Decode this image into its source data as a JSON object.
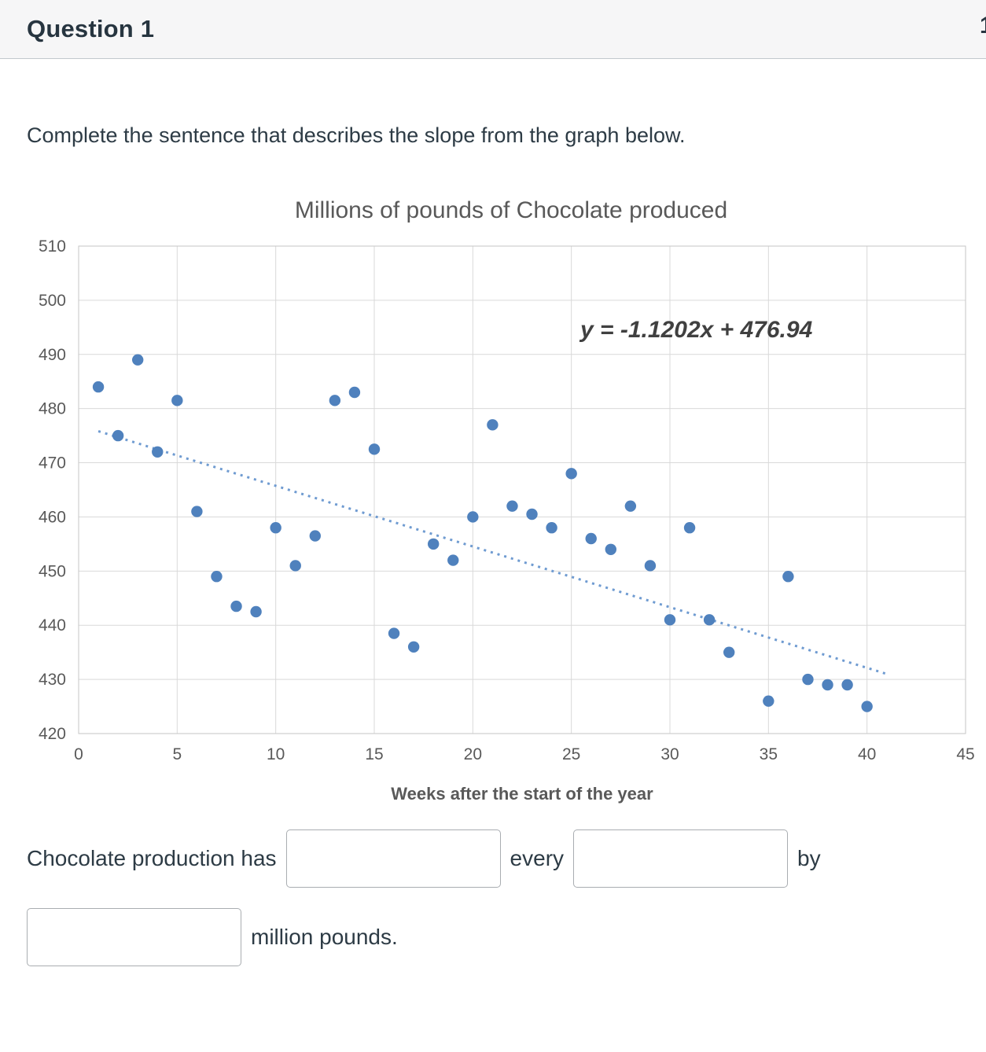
{
  "header": {
    "title": "Question 1",
    "right_fragment": "1"
  },
  "question": {
    "prompt": "Complete the sentence that describes the slope from the graph below."
  },
  "chart_data": {
    "type": "scatter",
    "title": "Millions of pounds of Chocolate produced",
    "xlabel": "Weeks after the start of the year",
    "ylabel": "",
    "xlim": [
      0,
      45
    ],
    "ylim": [
      420,
      510
    ],
    "x_ticks": [
      0,
      5,
      10,
      15,
      20,
      25,
      30,
      35,
      40,
      45
    ],
    "y_ticks": [
      420,
      430,
      440,
      450,
      460,
      470,
      480,
      490,
      500,
      510
    ],
    "grid": true,
    "legend": "none",
    "equation": "y = -1.1202x + 476.94",
    "trendline": {
      "slope": -1.1202,
      "intercept": 476.94,
      "x_start": 1,
      "x_end": 41,
      "style": "dotted"
    },
    "point_color": "#4f81bd",
    "trendline_color": "#6f9bd1",
    "grid_color": "#d9d9d9",
    "points": [
      [
        1,
        484
      ],
      [
        2,
        475
      ],
      [
        3,
        489
      ],
      [
        4,
        472
      ],
      [
        5,
        481.5
      ],
      [
        6,
        461
      ],
      [
        7,
        449
      ],
      [
        8,
        443.5
      ],
      [
        9,
        442.5
      ],
      [
        10,
        458
      ],
      [
        11,
        451
      ],
      [
        12,
        456.5
      ],
      [
        13,
        481.5
      ],
      [
        14,
        483
      ],
      [
        15,
        472.5
      ],
      [
        16,
        438.5
      ],
      [
        17,
        436
      ],
      [
        18,
        455
      ],
      [
        19,
        452
      ],
      [
        20,
        460
      ],
      [
        21,
        477
      ],
      [
        22,
        462
      ],
      [
        23,
        460.5
      ],
      [
        24,
        458
      ],
      [
        25,
        468
      ],
      [
        26,
        456
      ],
      [
        27,
        454
      ],
      [
        28,
        462
      ],
      [
        29,
        451
      ],
      [
        30,
        441
      ],
      [
        31,
        458
      ],
      [
        32,
        441
      ],
      [
        33,
        435
      ],
      [
        35,
        426
      ],
      [
        36,
        449
      ],
      [
        37,
        430
      ],
      [
        38,
        429
      ],
      [
        39,
        429
      ],
      [
        40,
        425
      ]
    ]
  },
  "sentence": {
    "part1": "Chocolate production has",
    "blank1_value": "",
    "part2": "every",
    "blank2_value": "",
    "part3": "by",
    "blank3_value": "",
    "part4": "million pounds."
  }
}
